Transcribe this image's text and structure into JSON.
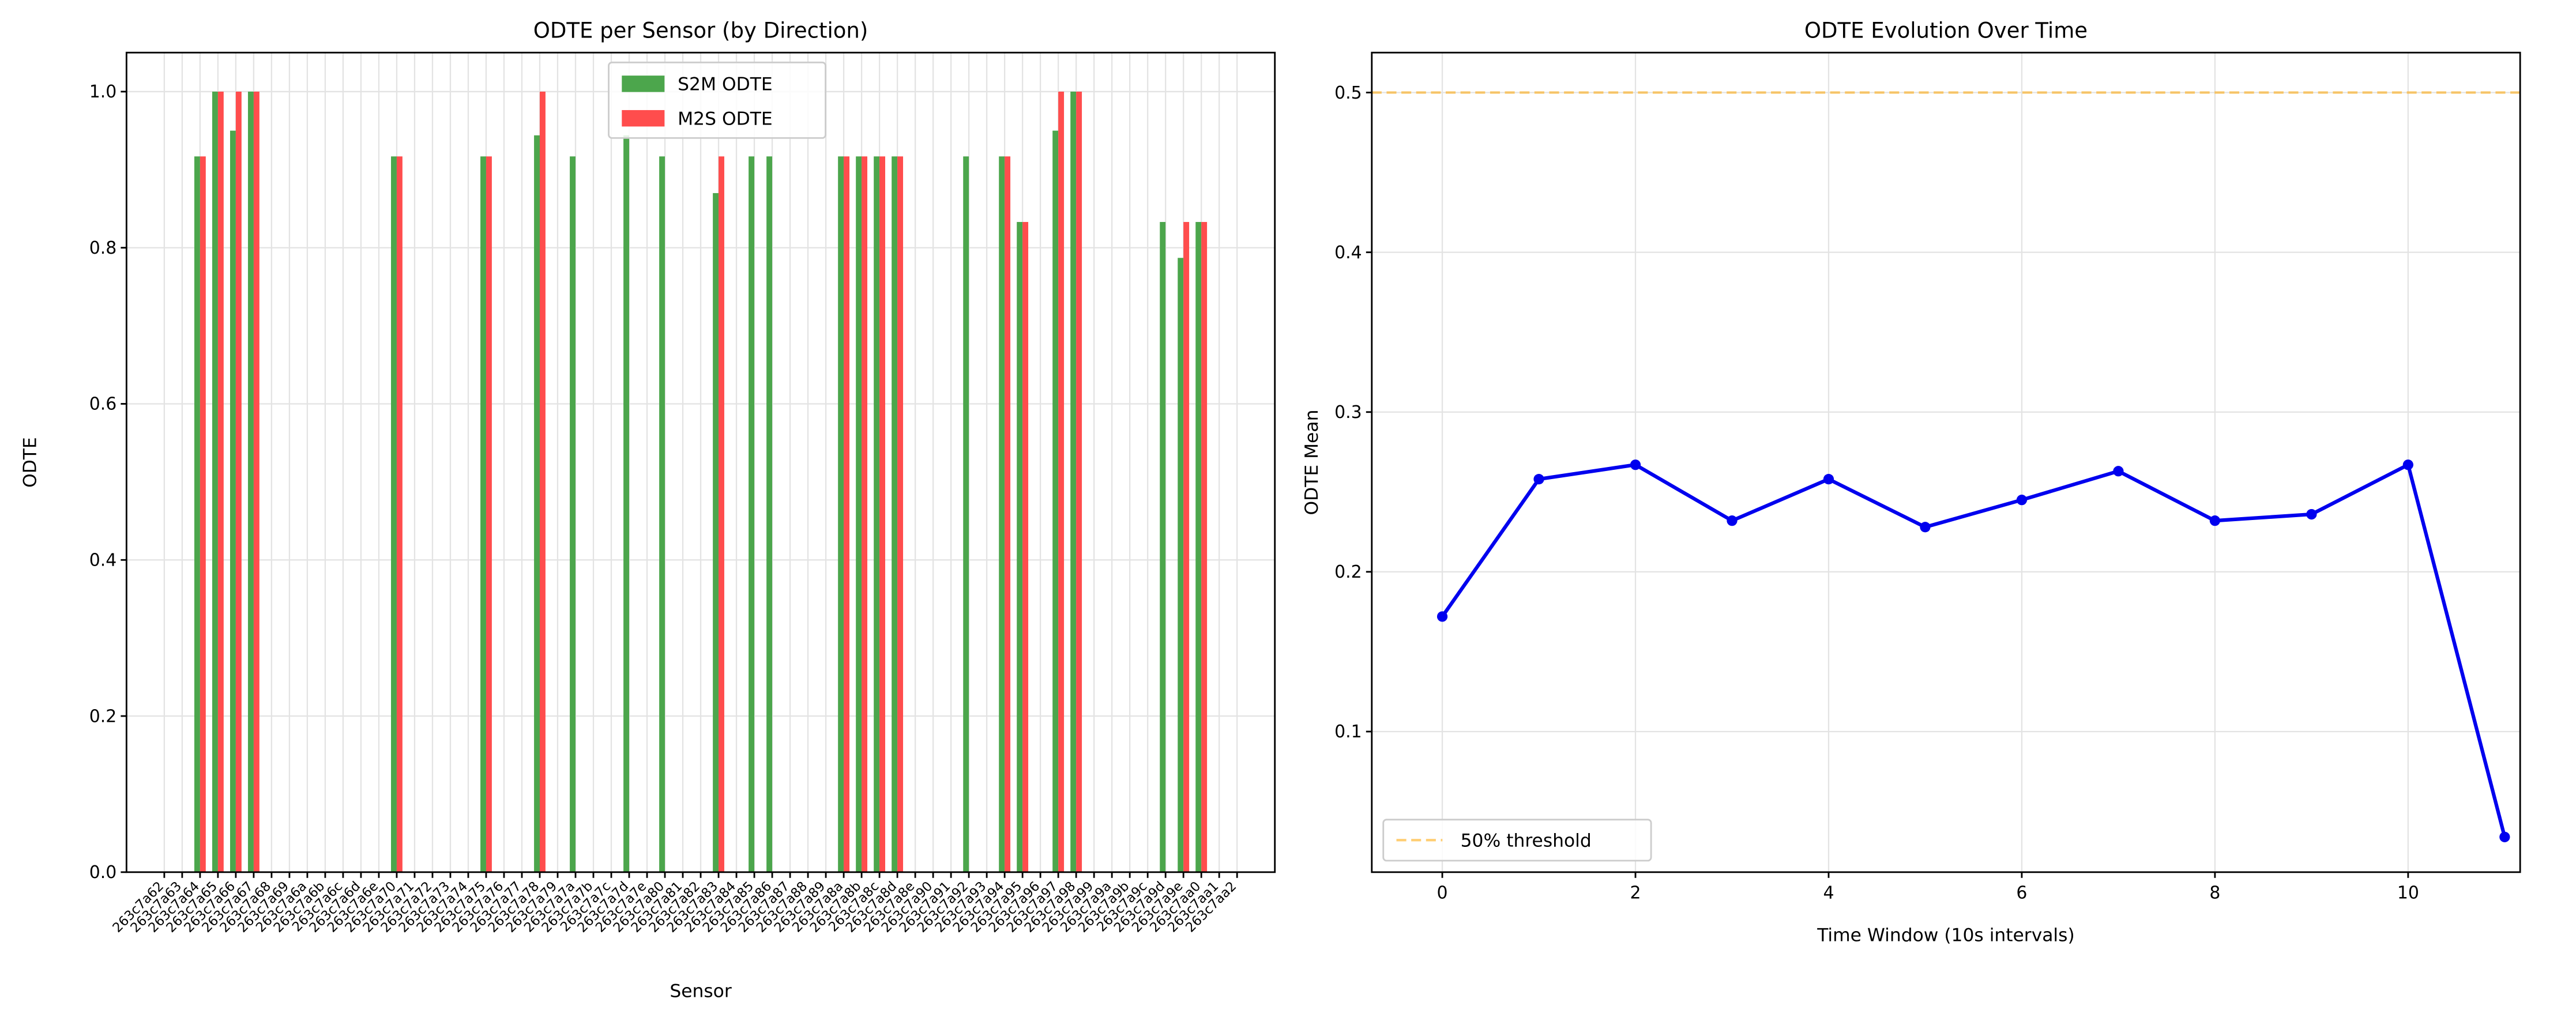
{
  "chart_data": [
    {
      "type": "bar",
      "title": "ODTE per Sensor (by Direction)",
      "x_label": "Sensor",
      "y_label": "ODTE",
      "categories": [
        "263c7a62",
        "263c7a63",
        "263c7a64",
        "263c7a65",
        "263c7a66",
        "263c7a67",
        "263c7a68",
        "263c7a69",
        "263c7a6a",
        "263c7a6b",
        "263c7a6c",
        "263c7a6d",
        "263c7a6e",
        "263c7a70",
        "263c7a71",
        "263c7a72",
        "263c7a73",
        "263c7a74",
        "263c7a75",
        "263c7a76",
        "263c7a77",
        "263c7a78",
        "263c7a79",
        "263c7a7a",
        "263c7a7b",
        "263c7a7c",
        "263c7a7d",
        "263c7a7e",
        "263c7a80",
        "263c7a81",
        "263c7a82",
        "263c7a83",
        "263c7a84",
        "263c7a85",
        "263c7a86",
        "263c7a87",
        "263c7a88",
        "263c7a89",
        "263c7a8a",
        "263c7a8b",
        "263c7a8c",
        "263c7a8d",
        "263c7a8e",
        "263c7a90",
        "263c7a91",
        "263c7a92",
        "263c7a93",
        "263c7a94",
        "263c7a95",
        "263c7a96",
        "263c7a97",
        "263c7a98",
        "263c7a99",
        "263c7a9a",
        "263c7a9b",
        "263c7a9c",
        "263c7a9d",
        "263c7a9e",
        "263c7aa0",
        "263c7aa1",
        "263c7aa2"
      ],
      "series": [
        {
          "name": "S2M ODTE",
          "color": "#4ca64c",
          "values": [
            0,
            0,
            0.917,
            1.0,
            0.95,
            1.0,
            0,
            0,
            0,
            0,
            0,
            0,
            0,
            0.917,
            0,
            0,
            0,
            0,
            0.917,
            0,
            0,
            0.944,
            0,
            0.917,
            0,
            0,
            0.944,
            0,
            0.917,
            0,
            0,
            0.87,
            0,
            0.917,
            0.917,
            0,
            0,
            0,
            0.917,
            0.917,
            0.917,
            0.917,
            0,
            0,
            0,
            0.917,
            0,
            0.917,
            0.833,
            0,
            0.95,
            1.0,
            0,
            0,
            0,
            0,
            0.833,
            0.787,
            0.833,
            0,
            0
          ]
        },
        {
          "name": "M2S ODTE",
          "color": "#ff4d4d",
          "values": [
            0,
            0,
            0.917,
            1.0,
            1.0,
            1.0,
            0,
            0,
            0,
            0,
            0,
            0,
            0,
            0.917,
            0,
            0,
            0,
            0,
            0.917,
            0,
            0,
            1.0,
            0,
            0,
            0,
            0,
            0,
            0,
            0,
            0,
            0,
            0.917,
            0,
            0,
            0,
            0,
            0,
            0,
            0.917,
            0.917,
            0.917,
            0.917,
            0,
            0,
            0,
            0,
            0,
            0.917,
            0.833,
            0,
            1.0,
            1.0,
            0,
            0,
            0,
            0,
            0,
            0.833,
            0.833,
            0,
            0
          ]
        }
      ],
      "ylim": [
        0,
        1.05
      ],
      "yticks": [
        {
          "value": 0,
          "label": "0.0"
        },
        0.2,
        0.4,
        0.6,
        0.8,
        {
          "value": 1,
          "label": "1.0"
        }
      ],
      "grid": true,
      "legend": "upper center"
    },
    {
      "type": "line",
      "title": "ODTE Evolution Over Time",
      "x_label": "Time Window (10s intervals)",
      "y_label": "ODTE Mean",
      "x": [
        0,
        1,
        2,
        3,
        4,
        5,
        6,
        7,
        8,
        9,
        10,
        11
      ],
      "series": [
        {
          "name": null,
          "color": "#0000ee",
          "values": [
            0.172,
            0.258,
            0.267,
            0.232,
            0.258,
            0.228,
            0.245,
            0.263,
            0.232,
            0.236,
            0.267,
            0.034
          ]
        }
      ],
      "threshold": {
        "name": "50% threshold",
        "value": 0.5,
        "color": "#ffa500"
      },
      "xlim": [
        -0.73,
        11.16
      ],
      "xticks": [
        0,
        2,
        4,
        6,
        8,
        10
      ],
      "ylim": [
        0.012,
        0.525
      ],
      "yticks": [
        0.1,
        0.2,
        0.3,
        0.4,
        0.5
      ],
      "grid": true,
      "legend": "lower left"
    }
  ]
}
